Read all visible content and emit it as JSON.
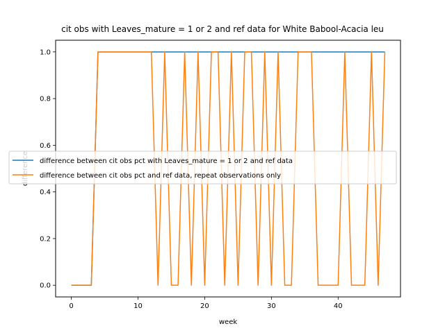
{
  "chart_data": {
    "type": "line",
    "title": "cit obs with Leaves_mature = 1 or 2 and ref data for White Babool-Acacia leu",
    "xlabel": "week",
    "ylabel": "difference",
    "xlim": [
      -2.35,
      49.35
    ],
    "ylim": [
      -0.05,
      1.05
    ],
    "xticks": [
      0,
      10,
      20,
      30,
      40
    ],
    "yticks": [
      0.0,
      0.2,
      0.4,
      0.6,
      0.8,
      1.0
    ],
    "ytick_labels": [
      "0.0",
      "0.2",
      "0.4",
      "0.6",
      "0.8",
      "1.0"
    ],
    "grid": false,
    "legend_position": "center-left",
    "series": [
      {
        "name": "difference between cit obs pct with Leaves_mature = 1 or 2 and ref data",
        "color": "#1f77b4",
        "x": [
          0,
          1,
          2,
          3,
          4,
          5,
          6,
          7,
          8,
          9,
          10,
          11,
          12,
          13,
          14,
          15,
          16,
          17,
          18,
          19,
          20,
          21,
          22,
          23,
          24,
          25,
          26,
          27,
          28,
          29,
          30,
          31,
          32,
          33,
          34,
          35,
          36,
          37,
          38,
          39,
          40,
          41,
          42,
          43,
          44,
          45,
          46,
          47
        ],
        "values": [
          0,
          0,
          0,
          0,
          1,
          1,
          1,
          1,
          1,
          1,
          1,
          1,
          1,
          1,
          1,
          1,
          1,
          1,
          1,
          1,
          1,
          1,
          1,
          1,
          1,
          1,
          1,
          1,
          1,
          1,
          1,
          1,
          1,
          1,
          1,
          1,
          1,
          1,
          1,
          1,
          1,
          1,
          1,
          1,
          1,
          1,
          1,
          1
        ]
      },
      {
        "name": "difference between cit obs pct and ref data, repeat observations only",
        "color": "#ff7f0e",
        "x": [
          0,
          1,
          2,
          3,
          4,
          5,
          6,
          7,
          8,
          9,
          10,
          11,
          12,
          13,
          14,
          15,
          16,
          17,
          18,
          19,
          20,
          21,
          22,
          23,
          24,
          25,
          26,
          27,
          28,
          29,
          30,
          31,
          32,
          33,
          34,
          35,
          36,
          37,
          38,
          39,
          40,
          41,
          42,
          43,
          44,
          45,
          46,
          47
        ],
        "values": [
          0,
          0,
          0,
          0,
          1,
          1,
          1,
          1,
          1,
          1,
          1,
          1,
          1,
          0,
          1,
          0,
          0,
          1,
          0,
          1,
          0,
          1,
          1,
          0,
          1,
          0,
          1,
          1,
          0,
          1,
          0,
          1,
          0,
          0,
          1,
          1,
          1,
          0,
          0,
          0,
          0,
          1,
          0,
          0,
          0,
          1,
          0,
          1
        ]
      }
    ]
  }
}
